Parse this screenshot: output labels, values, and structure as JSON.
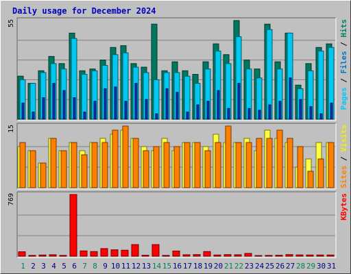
{
  "chart_data": {
    "type": "bar",
    "title": "Daily usage for December 2024",
    "x": [
      "1",
      "2",
      "3",
      "4",
      "5",
      "6",
      "7",
      "8",
      "9",
      "10",
      "11",
      "12",
      "13",
      "14",
      "15",
      "16",
      "17",
      "18",
      "19",
      "20",
      "21",
      "22",
      "23",
      "24",
      "25",
      "26",
      "27",
      "28",
      "29",
      "30",
      "31"
    ],
    "weekend_days": [
      1,
      7,
      8,
      14,
      15,
      21,
      22,
      28,
      29
    ],
    "panels": [
      {
        "id": "top",
        "max_label": "55",
        "ylim": [
          0,
          55
        ],
        "legend": [
          {
            "text": "Pages",
            "color": "#00c8ff"
          },
          {
            "text": " / ",
            "color": "#000000"
          },
          {
            "text": "Files",
            "color": "#0078c8"
          },
          {
            "text": " / ",
            "color": "#000000"
          },
          {
            "text": "Hits",
            "color": "#008060"
          }
        ],
        "series": [
          {
            "name": "Hits",
            "color": "#007860",
            "values": [
              24,
              20,
              27,
              35,
              31,
              48,
              27,
              28,
              33,
              40,
              41,
              31,
              29,
              53,
              27,
              32,
              27,
              25,
              32,
              42,
              36,
              55,
              33,
              28,
              53,
              32,
              48,
              19,
              31,
              40,
              42
            ]
          },
          {
            "name": "Files",
            "color": "#00c8f0",
            "values": [
              22,
              20,
              26,
              31,
              28,
              45,
              25,
              27,
              30,
              36,
              37,
              29,
              26,
              22,
              26,
              26,
              24,
              20,
              28,
              38,
              31,
              46,
              28,
              23,
              50,
              28,
              48,
              17,
              27,
              38,
              40
            ]
          },
          {
            "name": "Pages",
            "color": "#1030c0",
            "values": [
              9,
              4,
              12,
              20,
              16,
              12,
              4,
              10,
              17,
              18,
              10,
              20,
              11,
              3,
              17,
              15,
              4,
              8,
              10,
              16,
              6,
              20,
              6,
              5,
              8,
              10,
              23,
              11,
              7,
              3,
              9
            ]
          }
        ]
      },
      {
        "id": "middle",
        "max_label": "15",
        "ylim": [
          0,
          15
        ],
        "legend": [
          {
            "text": "Sites",
            "color": "#ff8000"
          },
          {
            "text": " / ",
            "color": "#000000"
          },
          {
            "text": "Visits",
            "color": "#f0f000"
          }
        ],
        "series": [
          {
            "name": "Visits",
            "color": "#ffff40",
            "values": [
              10,
              9,
              6,
              12,
              9,
              11,
              9,
              11,
              12,
              13,
              14,
              12,
              10,
              9,
              12,
              9,
              11,
              11,
              10,
              13,
              11,
              11,
              12,
              9,
              14,
              12,
              11,
              5,
              7,
              11,
              11
            ]
          },
          {
            "name": "Sites",
            "color": "#ff8000",
            "values": [
              11,
              9,
              6,
              12,
              9,
              11,
              8,
              11,
              11,
              14,
              15,
              12,
              9,
              10,
              11,
              10,
              11,
              11,
              9,
              11,
              15,
              11,
              11,
              12,
              12,
              14,
              12,
              10,
              4,
              7,
              11
            ]
          }
        ]
      },
      {
        "id": "bottom",
        "max_label": "769",
        "ylim": [
          0,
          769
        ],
        "legend": [
          {
            "text": "KBytes",
            "color": "#ff0000"
          }
        ],
        "series": [
          {
            "name": "KBytes",
            "color": "#ff0000",
            "values": [
              55,
              10,
              15,
              18,
              10,
              769,
              66,
              58,
              95,
              80,
              75,
              145,
              12,
              145,
              10,
              65,
              18,
              20,
              58,
              15,
              20,
              18,
              35,
              8,
              10,
              12,
              20,
              16,
              15,
              15,
              15
            ]
          }
        ]
      }
    ]
  }
}
